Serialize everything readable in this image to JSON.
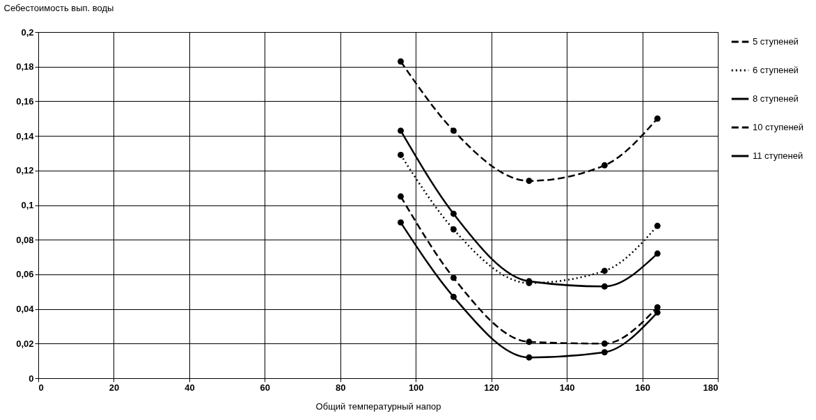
{
  "chart_data": {
    "type": "line",
    "xlabel": "Общий температурный напор",
    "ylabel": "Себестоимость вып. воды",
    "x": [
      96,
      110,
      130,
      150,
      164
    ],
    "series": [
      {
        "name": "5 ступеней",
        "color": "#000000",
        "line_style": "dashed",
        "values": [
          0.183,
          0.143,
          0.114,
          0.123,
          0.15
        ]
      },
      {
        "name": "6 ступеней",
        "color": "#000000",
        "line_style": "dotted",
        "values": [
          0.129,
          0.086,
          0.055,
          0.062,
          0.088
        ]
      },
      {
        "name": "8 ступеней",
        "color": "#000000",
        "line_style": "solid",
        "values": [
          0.09,
          0.047,
          0.012,
          0.015,
          0.038
        ]
      },
      {
        "name": "10 ступеней",
        "color": "#000000",
        "line_style": "dashed",
        "values": [
          0.105,
          0.058,
          0.021,
          0.02,
          0.041
        ]
      },
      {
        "name": "11 ступеней",
        "color": "#000000",
        "line_style": "solid",
        "values": [
          0.143,
          0.095,
          0.056,
          0.053,
          0.072
        ]
      }
    ],
    "xlim": [
      0,
      180
    ],
    "xticks": [
      0,
      20,
      40,
      60,
      80,
      100,
      120,
      140,
      160,
      180
    ],
    "ylim": [
      0,
      0.2
    ],
    "yticks": [
      0,
      {
        "value": 0.02,
        "label": "0,02"
      },
      {
        "value": 0.04,
        "label": "0,04"
      },
      {
        "value": 0.06,
        "label": "0,06"
      },
      {
        "value": 0.08,
        "label": "0,08"
      },
      {
        "value": 0.1,
        "label": "0,1"
      },
      {
        "value": 0.12,
        "label": "0,12"
      },
      {
        "value": 0.14,
        "label": "0,14"
      },
      {
        "value": 0.16,
        "label": "0,16"
      },
      {
        "value": 0.18,
        "label": "0,18"
      },
      {
        "value": 0.2,
        "label": "0,2"
      }
    ],
    "grid": true,
    "legend": "right",
    "marker": "circle"
  }
}
